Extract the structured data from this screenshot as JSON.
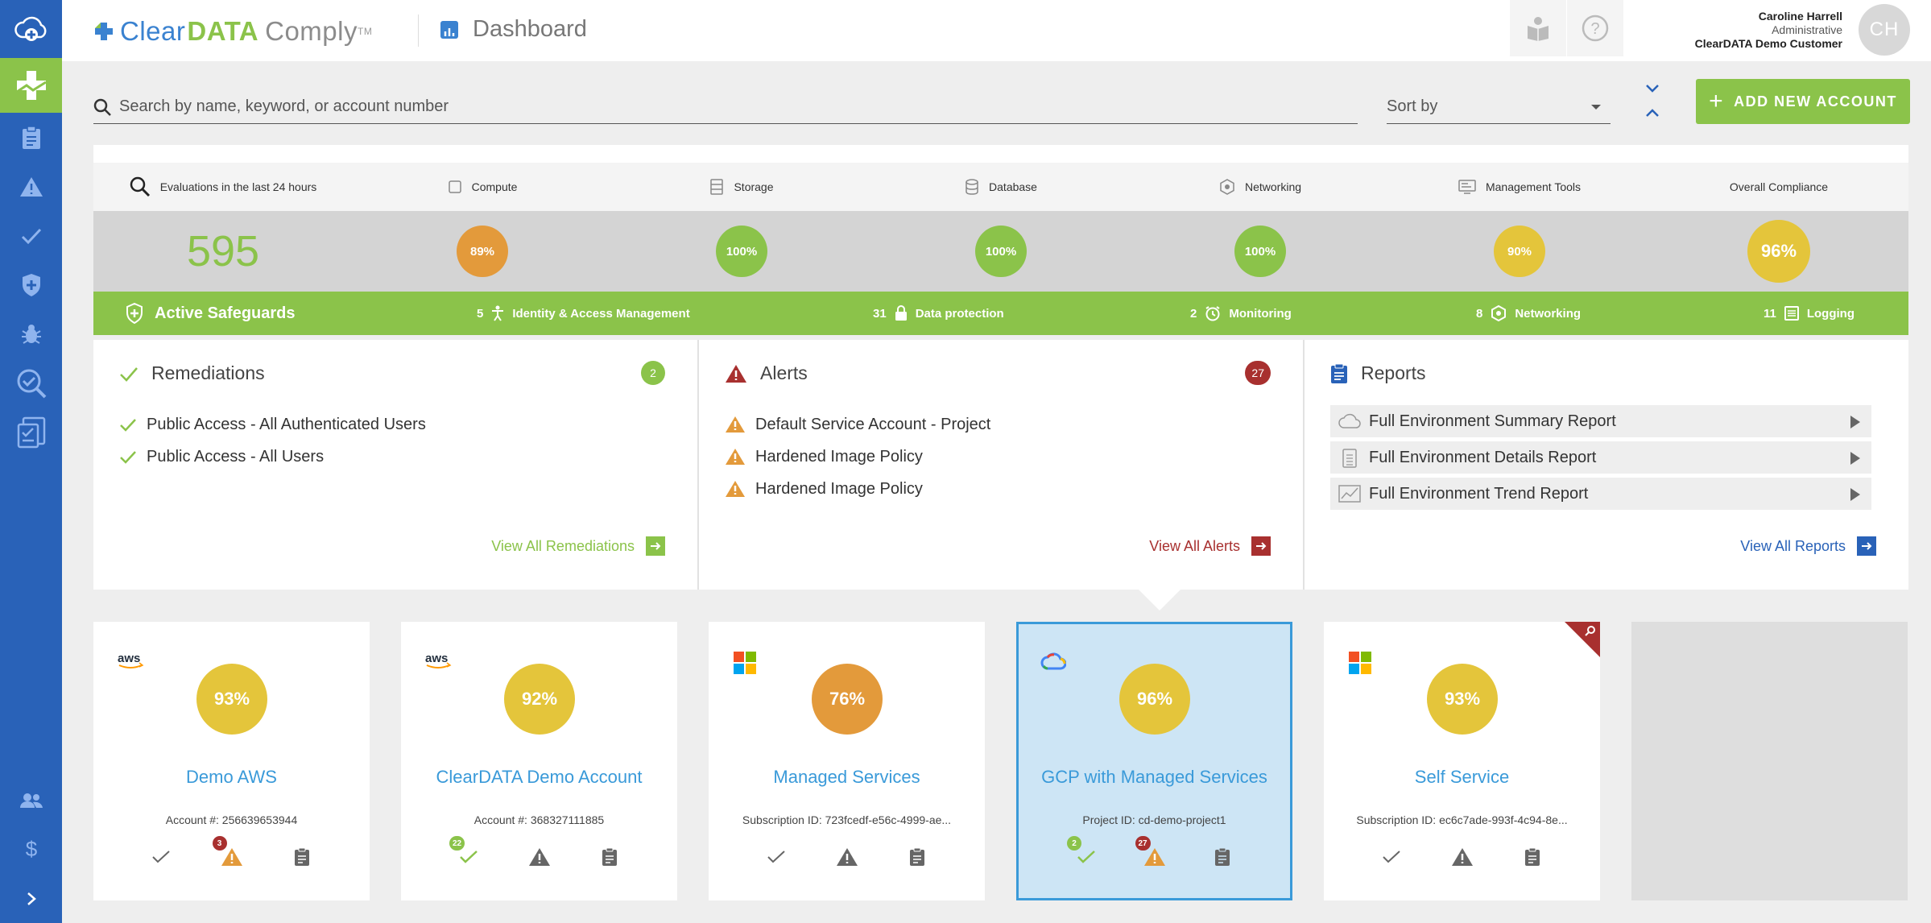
{
  "app": {
    "brand_clear": "Clear",
    "brand_data": "DATA",
    "brand_comply": "Comply",
    "brand_tm": "TM",
    "page_title": "Dashboard"
  },
  "user": {
    "name": "Caroline Harrell",
    "role": "Administrative",
    "org": "ClearDATA Demo Customer",
    "initials": "CH"
  },
  "search": {
    "placeholder": "Search by name, keyword, or account number",
    "value": ""
  },
  "sort": {
    "label": "Sort by"
  },
  "add_button": {
    "label": "ADD NEW ACCOUNT"
  },
  "summary": {
    "columns": [
      {
        "label": "Evaluations in the last 24 hours",
        "icon": "search-icon",
        "value": "595"
      },
      {
        "label": "Compute",
        "icon": "compute-icon",
        "value": "89%",
        "color": "#e39a3b"
      },
      {
        "label": "Storage",
        "icon": "storage-icon",
        "value": "100%",
        "color": "#8bc34a"
      },
      {
        "label": "Database",
        "icon": "database-icon",
        "value": "100%",
        "color": "#8bc34a"
      },
      {
        "label": "Networking",
        "icon": "networking-icon",
        "value": "100%",
        "color": "#8bc34a"
      },
      {
        "label": "Management Tools",
        "icon": "management-tools-icon",
        "value": "90%",
        "color": "#e4c53b"
      },
      {
        "label": "Overall Compliance",
        "icon": "",
        "value": "96%",
        "color": "#e4c53b"
      }
    ]
  },
  "safeguards": {
    "title": "Active Safeguards",
    "items": [
      {
        "count": "5",
        "label": "Identity & Access Management",
        "icon": "person-icon"
      },
      {
        "count": "31",
        "label": "Data protection",
        "icon": "lock-icon"
      },
      {
        "count": "2",
        "label": "Monitoring",
        "icon": "alarm-clock-icon"
      },
      {
        "count": "8",
        "label": "Networking",
        "icon": "networking-icon"
      },
      {
        "count": "11",
        "label": "Logging",
        "icon": "log-icon"
      }
    ]
  },
  "remediations": {
    "title": "Remediations",
    "count": "2",
    "items": [
      "Public Access - All Authenticated Users",
      "Public Access - All Users"
    ],
    "link": "View All Remediations"
  },
  "alerts": {
    "title": "Alerts",
    "count": "27",
    "items": [
      "Default Service Account - Project",
      "Hardened Image Policy",
      "Hardened Image Policy"
    ],
    "link": "View All Alerts"
  },
  "reports": {
    "title": "Reports",
    "items": [
      "Full Environment Summary Report",
      "Full Environment Details Report",
      "Full Environment Trend Report"
    ],
    "link": "View All Reports"
  },
  "accounts": [
    {
      "provider": "aws",
      "score": "93%",
      "color": "#e4c53b",
      "name": "Demo AWS",
      "id_text": "Account #: 256639653944",
      "remediations": "",
      "alerts": "3"
    },
    {
      "provider": "aws",
      "score": "92%",
      "color": "#e4c53b",
      "name": "ClearDATA Demo Account",
      "id_text": "Account #: 368327111885",
      "remediations": "22",
      "alerts": ""
    },
    {
      "provider": "azure",
      "score": "76%",
      "color": "#e39a3b",
      "name": "Managed Services",
      "id_text": "Subscription ID: 723fcedf-e56c-4999-ae...",
      "remediations": "",
      "alerts": ""
    },
    {
      "provider": "gcp",
      "score": "96%",
      "color": "#e4c53b",
      "name": "GCP with Managed Services",
      "id_text": "Project ID: cd-demo-project1",
      "remediations": "2",
      "alerts": "27"
    },
    {
      "provider": "azure",
      "score": "93%",
      "color": "#e4c53b",
      "name": "Self Service",
      "id_text": "Subscription ID: ec6c7ade-993f-4c94-8e...",
      "remediations": "",
      "alerts": ""
    }
  ],
  "colors": {
    "sidebar": "#2962b8",
    "green": "#8bc34a",
    "alert_red": "#a8302f",
    "blue_link": "#2962b8",
    "warning_orange": "#e39a3b"
  }
}
